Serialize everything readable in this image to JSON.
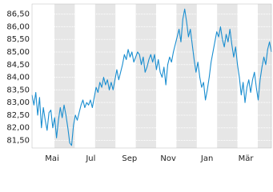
{
  "chart_data": {
    "type": "line",
    "x_labels": [
      "Mai",
      "Jul",
      "Sep",
      "Nov",
      "Jan",
      "Mär"
    ],
    "series": [
      {
        "color": "#1a8ed0",
        "values": [
          83.3,
          82.9,
          83.4,
          82.5,
          83.2,
          82.0,
          82.8,
          82.3,
          81.9,
          82.6,
          82.7,
          82.0,
          82.4,
          81.6,
          82.3,
          82.8,
          82.4,
          82.9,
          82.5,
          82.0,
          81.4,
          81.3,
          82.1,
          82.5,
          82.3,
          82.6,
          82.9,
          83.1,
          82.8,
          83.0,
          82.9,
          83.1,
          82.8,
          83.2,
          83.6,
          83.4,
          83.8,
          83.6,
          84.0,
          83.7,
          83.9,
          83.5,
          83.8,
          83.5,
          83.9,
          84.3,
          83.9,
          84.2,
          84.5,
          84.9,
          84.7,
          85.1,
          84.8,
          85.0,
          84.6,
          84.8,
          85.0,
          84.9,
          84.5,
          84.8,
          84.2,
          84.4,
          84.7,
          84.9,
          84.6,
          84.9,
          84.3,
          84.7,
          84.2,
          84.0,
          84.4,
          83.7,
          84.5,
          84.8,
          84.6,
          85.0,
          85.3,
          85.6,
          85.9,
          85.4,
          86.3,
          86.7,
          86.2,
          85.6,
          85.9,
          85.3,
          84.7,
          84.2,
          84.6,
          84.0,
          83.6,
          83.8,
          83.1,
          83.5,
          84.0,
          84.6,
          85.0,
          85.4,
          85.8,
          85.6,
          86.0,
          85.5,
          85.2,
          85.7,
          85.4,
          85.9,
          85.3,
          84.8,
          85.2,
          84.5,
          84.0,
          83.3,
          83.8,
          83.0,
          83.6,
          83.9,
          83.4,
          83.9,
          84.2,
          83.6,
          83.1,
          83.9,
          84.4,
          84.8,
          84.5,
          85.1,
          85.4,
          85.0
        ]
      }
    ],
    "ylim": [
      81.2,
      86.9
    ],
    "yticks": [
      {
        "value": 81.5,
        "label": "81,50"
      },
      {
        "value": 82,
        "label": "82,00"
      },
      {
        "value": 82.5,
        "label": "82,50"
      },
      {
        "value": 83,
        "label": "83,00"
      },
      {
        "value": 83.5,
        "label": "83,50"
      },
      {
        "value": 84,
        "label": "84,00"
      },
      {
        "value": 84.5,
        "label": "84,50"
      },
      {
        "value": 85,
        "label": "85,00"
      },
      {
        "value": 85.5,
        "label": "85,50"
      },
      {
        "value": 86,
        "label": "86,00"
      },
      {
        "value": 86.5,
        "label": "86,50"
      }
    ],
    "grid": true
  }
}
